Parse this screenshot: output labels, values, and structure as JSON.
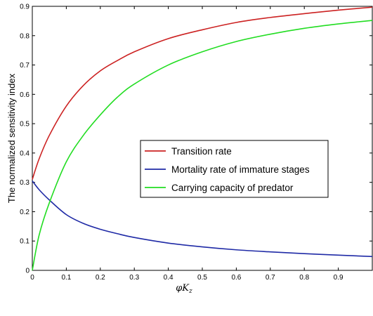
{
  "chart_data": {
    "type": "line",
    "title": "",
    "xlabel": "φK_z",
    "xlabel_main": "φK",
    "xlabel_sub": "z",
    "ylabel": "The normalized sensitivity index",
    "xlim": [
      0,
      1
    ],
    "ylim": [
      0,
      0.9
    ],
    "xticks": [
      0,
      0.1,
      0.2,
      0.3,
      0.4,
      0.5,
      0.6,
      0.7,
      0.8,
      0.9
    ],
    "xtick_labels": [
      "0",
      "0.1",
      "0.2",
      "0.3",
      "0.4",
      "0.5",
      "0.6",
      "0.7",
      "0.8",
      "0.9"
    ],
    "yticks": [
      0,
      0.1,
      0.2,
      0.3,
      0.4,
      0.5,
      0.6,
      0.7,
      0.8,
      0.9
    ],
    "ytick_labels": [
      "0",
      "0.1",
      "0.2",
      "0.3",
      "0.4",
      "0.5",
      "0.6",
      "0.7",
      "0.8",
      "0.9"
    ],
    "grid": false,
    "legend_position": "center",
    "x": [
      0,
      0.02,
      0.05,
      0.1,
      0.15,
      0.2,
      0.25,
      0.3,
      0.4,
      0.5,
      0.6,
      0.7,
      0.8,
      0.9,
      1.0
    ],
    "series": [
      {
        "name": "Transition rate",
        "color": "#cc2222",
        "values": [
          0.31,
          0.38,
          0.46,
          0.56,
          0.63,
          0.68,
          0.715,
          0.745,
          0.79,
          0.82,
          0.845,
          0.862,
          0.875,
          0.887,
          0.897
        ]
      },
      {
        "name": "Mortality rate of immature stages",
        "color": "#1f2aa6",
        "values": [
          0.305,
          0.275,
          0.24,
          0.19,
          0.16,
          0.14,
          0.125,
          0.112,
          0.093,
          0.08,
          0.07,
          0.063,
          0.057,
          0.052,
          0.047
        ]
      },
      {
        "name": "Carrying capacity of predator",
        "color": "#22dd22",
        "values": [
          0.0,
          0.12,
          0.23,
          0.37,
          0.46,
          0.53,
          0.59,
          0.635,
          0.7,
          0.745,
          0.78,
          0.805,
          0.825,
          0.84,
          0.852
        ]
      }
    ]
  }
}
